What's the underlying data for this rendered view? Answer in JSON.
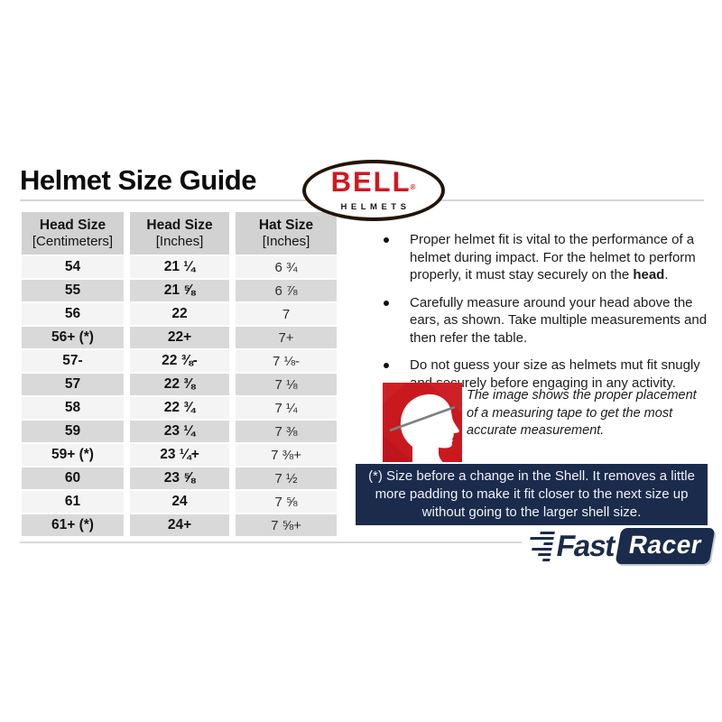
{
  "page": {
    "title": "Helmet Size Guide"
  },
  "bell_logo": {
    "name": "BELL",
    "registered": "®",
    "subtitle": "HELMETS"
  },
  "size_table": {
    "headers": [
      {
        "line1": "Head Size",
        "line2": "[Centimeters]"
      },
      {
        "line1": "Head Size",
        "line2": "[Inches]"
      },
      {
        "line1": "Hat Size",
        "line2": "[Inches]"
      }
    ],
    "rows": [
      [
        "54",
        "21 ¼",
        "6 ¾"
      ],
      [
        "55",
        "21 ⅝",
        "6 ⅞"
      ],
      [
        "56",
        "22",
        "7"
      ],
      [
        "56+ (*)",
        "22+",
        "7+"
      ],
      [
        "57-",
        "22 ⅜-",
        "7 ⅛-"
      ],
      [
        "57",
        "22 ⅜",
        "7 ⅛"
      ],
      [
        "58",
        "22 ¾",
        "7 ¼"
      ],
      [
        "59",
        "23 ¼",
        "7 ⅜"
      ],
      [
        "59+ (*)",
        "23 ¼+",
        "7 ⅜+"
      ],
      [
        "60",
        "23 ⅝",
        "7 ½"
      ],
      [
        "61",
        "24",
        "7 ⅝"
      ],
      [
        "61+ (*)",
        "24+",
        "7 ⅝+"
      ]
    ]
  },
  "fit_notes": {
    "bullet1": {
      "lead": "Proper helmet fit is vital to the performance of a helmet during impact. For the helmet to perform properly, it must stay securely on the ",
      "bold": "head",
      "tail": "."
    },
    "bullet2": "Carefully measure around your head above the ears, as shown. Take multiple measurements and then refer the table.",
    "bullet3": "Do not guess your size as helmets mut fit snugly and securely before engaging in any activity."
  },
  "measurement_figure": {
    "icon": "head-profile-with-measuring-tape",
    "caption": "The image shows the proper placement of a measuring tape to get the most accurate measurement."
  },
  "shell_note": {
    "text": "(*) Size before a change in the Shell. It removes a little more padding to make it fit closer to the next size up without going to the larger shell size."
  },
  "footer": {
    "brand_fast": "Fast",
    "brand_racer": "Racer"
  },
  "colors": {
    "bell_red": "#d6161d",
    "figure_red": "#c9191f",
    "navy": "#1b2b4c",
    "header_gray": "#d2d2d2",
    "row_light": "#f4f4f4",
    "row_dark": "#d9d9d9"
  }
}
